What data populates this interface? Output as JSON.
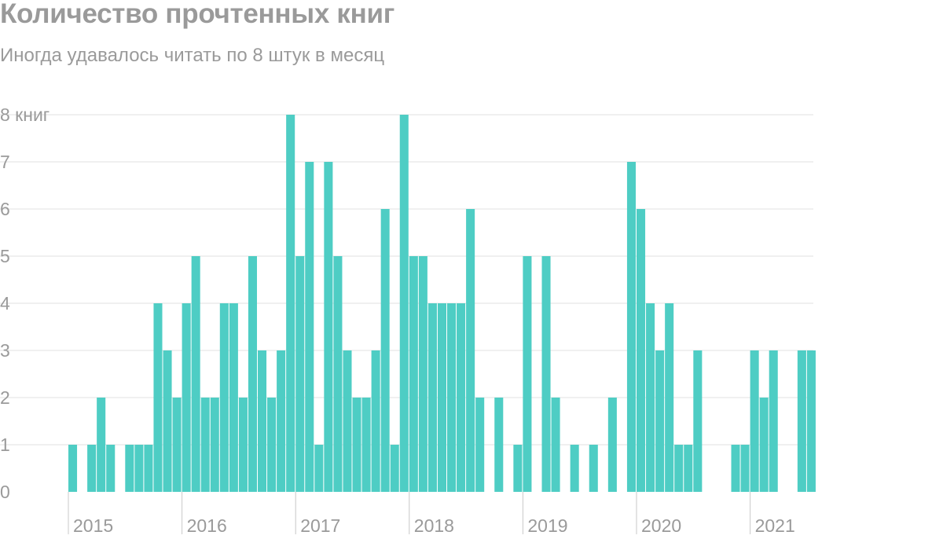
{
  "title": "Количество прочтенных книг",
  "subtitle": "Иногда удавалось читать по 8 штук в месяц",
  "colors": {
    "bar": "#4ecdc4",
    "grid": "#e2e2e2",
    "text": "#9a9a9a",
    "year_tick": "#c8c8c8"
  },
  "chart_data": {
    "type": "bar",
    "title": "Количество прочтенных книг",
    "subtitle": "Иногда удавалось читать по 8 штук в месяц",
    "x_unit": "month",
    "y_unit": "книг",
    "ylim": [
      0,
      8
    ],
    "yticks": [
      "0",
      "1",
      "2",
      "3",
      "4",
      "5",
      "6",
      "7",
      "8 книг"
    ],
    "grid": true,
    "x_year_labels": [
      "2015",
      "2016",
      "2017",
      "2018",
      "2019",
      "2020",
      "2021"
    ],
    "series": [
      {
        "year": "2015",
        "months": [
          "01",
          "02",
          "03",
          "04",
          "05",
          "06",
          "07",
          "08",
          "09",
          "10",
          "11",
          "12"
        ],
        "values": [
          1,
          0,
          1,
          2,
          1,
          0,
          1,
          1,
          1,
          4,
          3,
          2
        ]
      },
      {
        "year": "2016",
        "months": [
          "01",
          "02",
          "03",
          "04",
          "05",
          "06",
          "07",
          "08",
          "09",
          "10",
          "11",
          "12"
        ],
        "values": [
          4,
          5,
          2,
          2,
          4,
          4,
          2,
          5,
          3,
          2,
          3,
          8
        ]
      },
      {
        "year": "2017",
        "months": [
          "01",
          "02",
          "03",
          "04",
          "05",
          "06",
          "07",
          "08",
          "09",
          "10",
          "11",
          "12"
        ],
        "values": [
          5,
          7,
          1,
          7,
          5,
          3,
          2,
          2,
          3,
          6,
          1,
          8
        ]
      },
      {
        "year": "2018",
        "months": [
          "01",
          "02",
          "03",
          "04",
          "05",
          "06",
          "07",
          "08",
          "09",
          "10",
          "11",
          "12"
        ],
        "values": [
          5,
          5,
          4,
          4,
          4,
          4,
          6,
          2,
          0,
          2,
          0,
          1
        ]
      },
      {
        "year": "2019",
        "months": [
          "01",
          "02",
          "03",
          "04",
          "05",
          "06",
          "07",
          "08",
          "09",
          "10",
          "11",
          "12"
        ],
        "values": [
          5,
          0,
          5,
          2,
          0,
          1,
          0,
          1,
          0,
          2,
          0,
          7
        ]
      },
      {
        "year": "2020",
        "months": [
          "01",
          "02",
          "03",
          "04",
          "05",
          "06",
          "07",
          "08",
          "09",
          "10",
          "11",
          "12"
        ],
        "values": [
          6,
          4,
          3,
          4,
          1,
          1,
          3,
          0,
          0,
          0,
          1,
          1
        ]
      },
      {
        "year": "2021",
        "months": [
          "01",
          "02",
          "03",
          "04",
          "05",
          "06",
          "07"
        ],
        "values": [
          3,
          2,
          3,
          0,
          0,
          3,
          3
        ]
      }
    ]
  }
}
